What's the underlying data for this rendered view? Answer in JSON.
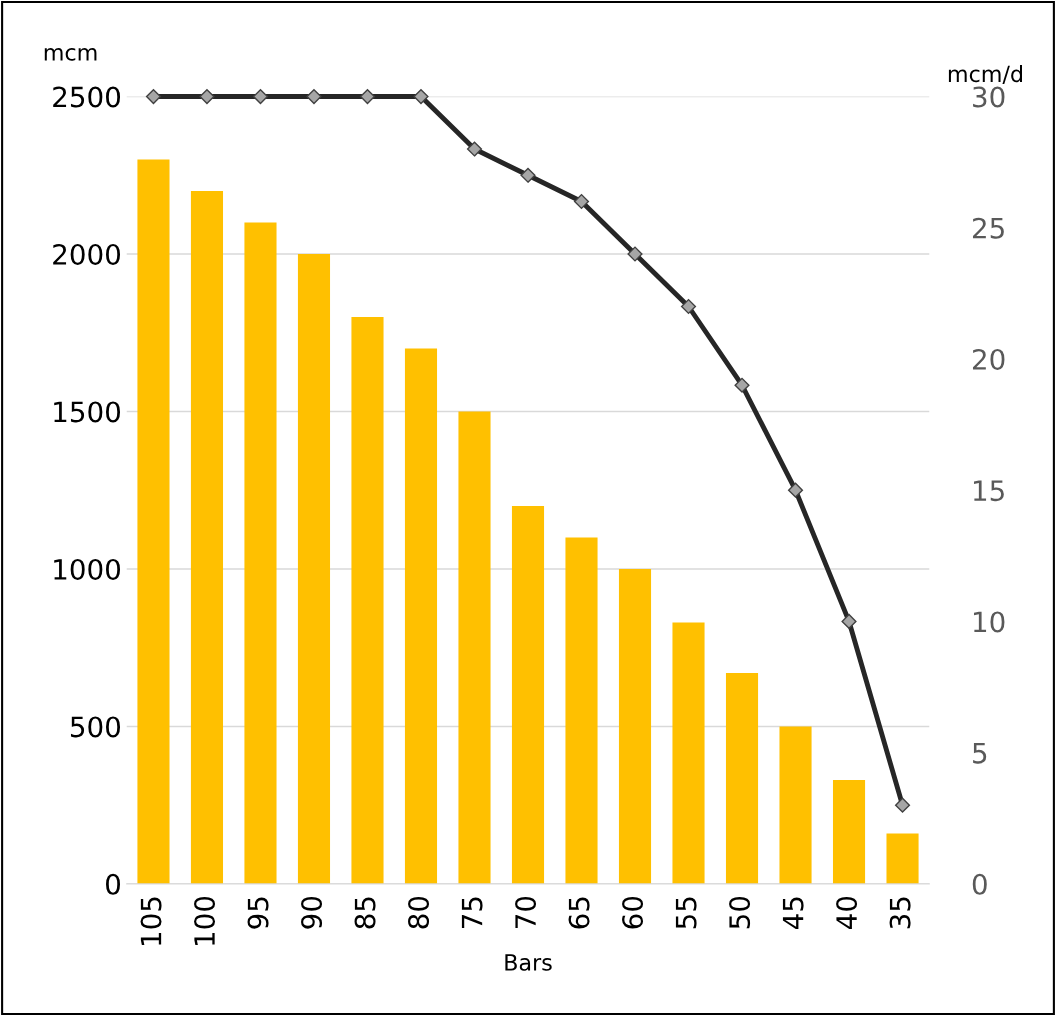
{
  "chart_data": {
    "type": "bar",
    "xlabel": "Bars",
    "ylabel": "mcm",
    "y2label": "mcm/d",
    "categories": [
      "105",
      "100",
      "95",
      "90",
      "85",
      "80",
      "75",
      "70",
      "65",
      "60",
      "55",
      "50",
      "45",
      "40",
      "35"
    ],
    "series": [
      {
        "color": "#ffc000",
        "values": [
          2300,
          2200,
          2100,
          2000,
          1800,
          1700,
          1500,
          1200,
          1100,
          1000,
          830,
          670,
          500,
          330,
          160
        ]
      },
      {
        "type": "line",
        "axis": "y2",
        "color": "#262626",
        "marker": "diamond",
        "values": [
          30,
          30,
          30,
          30,
          30,
          30,
          28,
          27,
          26,
          24,
          22,
          19,
          15,
          10,
          3
        ]
      }
    ],
    "ylim": [
      0,
      2500
    ],
    "yticks": [
      0,
      500,
      1000,
      1500,
      2000,
      2500
    ],
    "y2lim": [
      0,
      30
    ],
    "y2ticks": [
      0,
      5,
      10,
      15,
      20,
      25,
      30
    ],
    "grid": "y",
    "legend": false
  }
}
